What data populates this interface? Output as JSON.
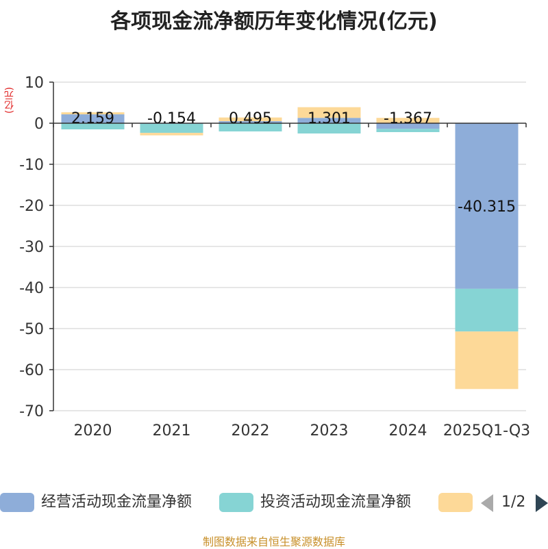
{
  "title": "各项现金流净额历年变化情况(亿元)",
  "unit_label": "(亿元)",
  "source": "制图数据来自恒生聚源数据库",
  "legend": {
    "page_indicator": "1/2",
    "items": [
      {
        "label": "经营活动现金流量净额",
        "color": "#8eadd9"
      },
      {
        "label": "投资活动现金流量净额",
        "color": "#86d4d4"
      },
      {
        "label": "",
        "color": "#fdd998"
      }
    ]
  },
  "chart_data": {
    "type": "bar",
    "stacked": true,
    "title": "各项现金流净额历年变化情况(亿元)",
    "ylabel": "(亿元)",
    "ylim": [
      -70,
      10
    ],
    "yticks": [
      10,
      0,
      -10,
      -20,
      -30,
      -40,
      -50,
      -60,
      -70
    ],
    "categories": [
      "2020",
      "2021",
      "2022",
      "2023",
      "2024",
      "2025Q1-Q3"
    ],
    "grid": true,
    "legend_position": "bottom",
    "series": [
      {
        "name": "经营活动现金流量净额",
        "color": "#8eadd9",
        "values": [
          2.159,
          -0.154,
          0.495,
          1.301,
          -1.367,
          -40.315
        ],
        "labels": [
          "2.159",
          "-0.154",
          "0.495",
          "1.301",
          "-1.367",
          "-40.315"
        ]
      },
      {
        "name": "投资活动现金流量净额",
        "color": "#86d4d4",
        "values": [
          -1.5,
          -2.2,
          -2.0,
          -2.5,
          -0.8,
          -10.4
        ]
      },
      {
        "color": "#fdd998",
        "values": [
          0.5,
          -0.6,
          0.9,
          2.6,
          1.3,
          -14.0
        ]
      }
    ]
  }
}
